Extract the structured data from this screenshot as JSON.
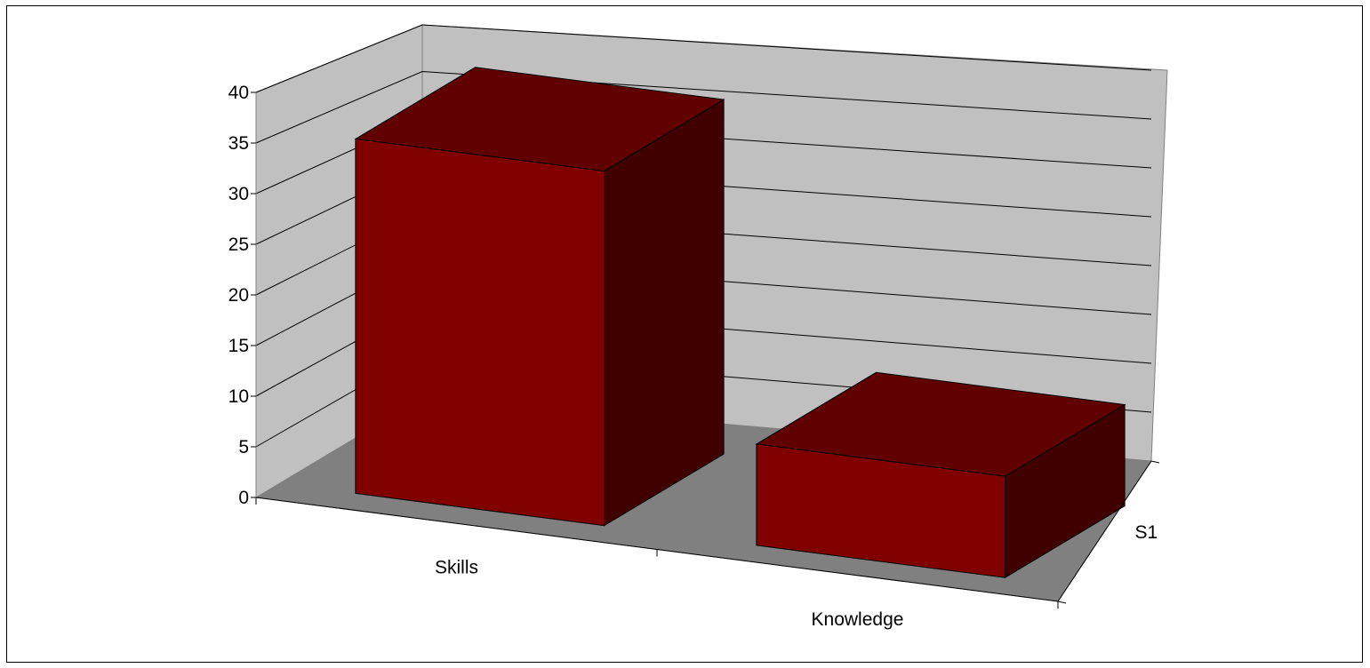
{
  "chart_data": {
    "type": "bar",
    "title": "",
    "xlabel": "",
    "ylabel": "",
    "categories": [
      "Skills",
      "Knowledge"
    ],
    "series": [
      {
        "name": "S1",
        "values": [
          35,
          10
        ],
        "color": "#800000"
      }
    ],
    "ylim": [
      0,
      40
    ],
    "yticks": [
      0,
      5,
      10,
      15,
      20,
      25,
      30,
      35,
      40
    ],
    "grid": true,
    "legend": "none",
    "three_d": true,
    "colors": {
      "bar_front": "#800000",
      "bar_top": "#600000",
      "bar_side": "#400000",
      "back_wall": "#c0c0c0",
      "side_wall": "#c0c0c0",
      "floor": "#808080"
    }
  }
}
